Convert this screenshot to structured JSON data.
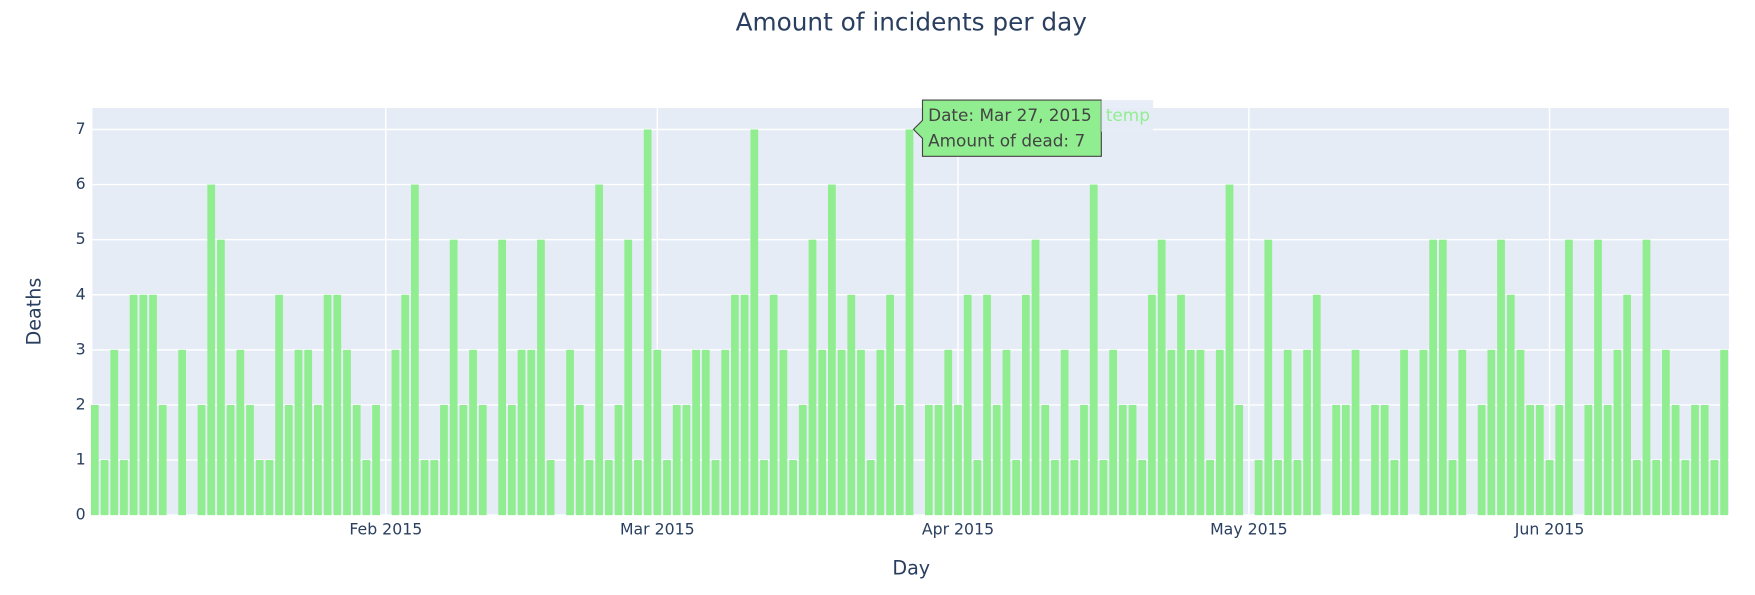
{
  "chart_data": {
    "type": "bar",
    "title": "Amount of incidents per day",
    "x_label": "Day",
    "y_label": "Deaths",
    "color": "#90ee90",
    "x": [
      "2015-01-02",
      "2015-01-03",
      "2015-01-04",
      "2015-01-05",
      "2015-01-06",
      "2015-01-07",
      "2015-01-08",
      "2015-01-09",
      "2015-01-10",
      "2015-01-11",
      "2015-01-12",
      "2015-01-13",
      "2015-01-14",
      "2015-01-15",
      "2015-01-16",
      "2015-01-17",
      "2015-01-18",
      "2015-01-19",
      "2015-01-20",
      "2015-01-21",
      "2015-01-22",
      "2015-01-23",
      "2015-01-24",
      "2015-01-25",
      "2015-01-26",
      "2015-01-27",
      "2015-01-28",
      "2015-01-29",
      "2015-01-30",
      "2015-01-31",
      "2015-02-01",
      "2015-02-02",
      "2015-02-03",
      "2015-02-04",
      "2015-02-05",
      "2015-02-06",
      "2015-02-07",
      "2015-02-08",
      "2015-02-09",
      "2015-02-10",
      "2015-02-11",
      "2015-02-12",
      "2015-02-13",
      "2015-02-14",
      "2015-02-15",
      "2015-02-16",
      "2015-02-17",
      "2015-02-18",
      "2015-02-19",
      "2015-02-20",
      "2015-02-21",
      "2015-02-22",
      "2015-02-23",
      "2015-02-24",
      "2015-02-25",
      "2015-02-26",
      "2015-02-27",
      "2015-02-28",
      "2015-03-01",
      "2015-03-02",
      "2015-03-03",
      "2015-03-04",
      "2015-03-05",
      "2015-03-06",
      "2015-03-07",
      "2015-03-08",
      "2015-03-09",
      "2015-03-10",
      "2015-03-11",
      "2015-03-12",
      "2015-03-13",
      "2015-03-14",
      "2015-03-15",
      "2015-03-16",
      "2015-03-17",
      "2015-03-18",
      "2015-03-19",
      "2015-03-20",
      "2015-03-21",
      "2015-03-22",
      "2015-03-23",
      "2015-03-24",
      "2015-03-25",
      "2015-03-26",
      "2015-03-27",
      "2015-03-28",
      "2015-03-29",
      "2015-03-30",
      "2015-03-31",
      "2015-04-01",
      "2015-04-02",
      "2015-04-03",
      "2015-04-04",
      "2015-04-05",
      "2015-04-06",
      "2015-04-07",
      "2015-04-08",
      "2015-04-09",
      "2015-04-10",
      "2015-04-11",
      "2015-04-12",
      "2015-04-13",
      "2015-04-14",
      "2015-04-15",
      "2015-04-16",
      "2015-04-17",
      "2015-04-18",
      "2015-04-19",
      "2015-04-20",
      "2015-04-21",
      "2015-04-22",
      "2015-04-23",
      "2015-04-24",
      "2015-04-25",
      "2015-04-26",
      "2015-04-27",
      "2015-04-28",
      "2015-04-29",
      "2015-04-30",
      "2015-05-01",
      "2015-05-02",
      "2015-05-03",
      "2015-05-04",
      "2015-05-05",
      "2015-05-06",
      "2015-05-07",
      "2015-05-08",
      "2015-05-09",
      "2015-05-10",
      "2015-05-11",
      "2015-05-12",
      "2015-05-13",
      "2015-05-14",
      "2015-05-15",
      "2015-05-16",
      "2015-05-17",
      "2015-05-18",
      "2015-05-19",
      "2015-05-20",
      "2015-05-21",
      "2015-05-22",
      "2015-05-23",
      "2015-05-24",
      "2015-05-25",
      "2015-05-26",
      "2015-05-27",
      "2015-05-28",
      "2015-05-29",
      "2015-05-30",
      "2015-05-31",
      "2015-06-01",
      "2015-06-02",
      "2015-06-03",
      "2015-06-04",
      "2015-06-05",
      "2015-06-06",
      "2015-06-07",
      "2015-06-08",
      "2015-06-09",
      "2015-06-10",
      "2015-06-11",
      "2015-06-12",
      "2015-06-13",
      "2015-06-14",
      "2015-06-15",
      "2015-06-16",
      "2015-06-17",
      "2015-06-18",
      "2015-06-19"
    ],
    "values": [
      2,
      1,
      3,
      1,
      4,
      4,
      4,
      2,
      0,
      3,
      0,
      2,
      6,
      5,
      2,
      3,
      2,
      1,
      1,
      4,
      2,
      3,
      3,
      2,
      4,
      4,
      3,
      2,
      1,
      2,
      0,
      3,
      4,
      6,
      1,
      1,
      2,
      5,
      2,
      3,
      2,
      0,
      5,
      2,
      3,
      3,
      5,
      1,
      0,
      3,
      2,
      1,
      6,
      1,
      2,
      5,
      1,
      7,
      3,
      1,
      2,
      2,
      3,
      3,
      1,
      3,
      4,
      4,
      7,
      1,
      4,
      3,
      1,
      2,
      5,
      3,
      6,
      3,
      4,
      3,
      1,
      3,
      4,
      2,
      7,
      0,
      2,
      2,
      3,
      2,
      4,
      1,
      4,
      2,
      3,
      1,
      4,
      5,
      2,
      1,
      3,
      1,
      2,
      6,
      1,
      3,
      2,
      2,
      1,
      4,
      5,
      3,
      4,
      3,
      3,
      1,
      3,
      6,
      2,
      0,
      1,
      5,
      1,
      3,
      1,
      3,
      4,
      0,
      2,
      2,
      3,
      0,
      2,
      2,
      1,
      3,
      0,
      3,
      5,
      5,
      1,
      3,
      0,
      2,
      3,
      5,
      4,
      3,
      2,
      2,
      1,
      2,
      5,
      0,
      2,
      5,
      2,
      3,
      4,
      1,
      5,
      1,
      3,
      2,
      1,
      2,
      2,
      1,
      3
    ],
    "xlim": [
      "2015-01-01T18:00",
      "2015-06-19T12:00"
    ],
    "xticks": [
      {
        "value": "2015-02-01",
        "label": "Feb 2015"
      },
      {
        "value": "2015-03-01",
        "label": "Mar 2015"
      },
      {
        "value": "2015-04-01",
        "label": "Apr 2015"
      },
      {
        "value": "2015-05-01",
        "label": "May 2015"
      },
      {
        "value": "2015-06-01",
        "label": "Jun 2015"
      }
    ],
    "ylim": [
      0,
      7.39
    ],
    "yticks": [
      0,
      1,
      2,
      3,
      4,
      5,
      6,
      7
    ],
    "grid": true,
    "tooltip": {
      "lines": [
        "Date: Mar 27, 2015",
        "Amount of dead: 7"
      ],
      "name": "temp"
    }
  }
}
